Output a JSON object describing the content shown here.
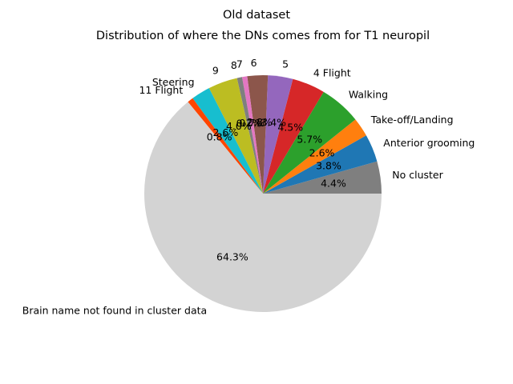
{
  "chart_data": {
    "type": "pie",
    "suptitle": "Old dataset",
    "title": "Distribution of where the DNs comes from for T1 neuropil",
    "start_angle_deg": 0,
    "direction": "counterclockwise",
    "slices": [
      {
        "label": "No cluster",
        "value": 4.4,
        "pct_label": "4.4%",
        "color": "#7f7f7f"
      },
      {
        "label": "Anterior grooming",
        "value": 3.8,
        "pct_label": "3.8%",
        "color": "#1f77b4"
      },
      {
        "label": "Take-off/Landing",
        "value": 2.6,
        "pct_label": "2.6%",
        "color": "#ff7f0e"
      },
      {
        "label": "Walking",
        "value": 5.7,
        "pct_label": "5.7%",
        "color": "#2ca02c"
      },
      {
        "label": "4 Flight",
        "value": 4.5,
        "pct_label": "4.5%",
        "color": "#d62728"
      },
      {
        "label": "5",
        "value": 3.4,
        "pct_label": "3.4%",
        "color": "#9467bd"
      },
      {
        "label": "6",
        "value": 2.8,
        "pct_label": "2.8%",
        "color": "#8c564b"
      },
      {
        "label": "7",
        "value": 0.7,
        "pct_label": "0.7%",
        "color": "#e377c2"
      },
      {
        "label": "8",
        "value": 0.7,
        "pct_label": "0.7%",
        "color": "#7f7f7f"
      },
      {
        "label": "9",
        "value": 4.0,
        "pct_label": "4.0%",
        "color": "#bcbd22"
      },
      {
        "label": "Steering",
        "value": 2.6,
        "pct_label": "2.6%",
        "color": "#17becf"
      },
      {
        "label": "11 Flight",
        "value": 0.8,
        "pct_label": "0.8%",
        "color": "#ff4500"
      },
      {
        "label": "Brain name not found in cluster data",
        "value": 64.3,
        "pct_label": "64.3%",
        "color": "#d3d3d3"
      }
    ]
  }
}
